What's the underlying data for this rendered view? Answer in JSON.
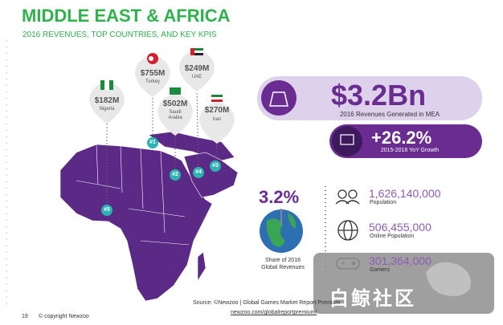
{
  "header": {
    "title": "MIDDLE EAST & AFRICA",
    "subtitle": "2016 REVENUES, TOP COUNTRIES, AND KEY KPIS"
  },
  "pins": [
    {
      "value": "$755M",
      "country": "Turkey",
      "rank": "#1"
    },
    {
      "value": "$502M",
      "country": "Saudi Arabia",
      "rank": "#2"
    },
    {
      "value": "$270M",
      "country": "Iran",
      "rank": "#3"
    },
    {
      "value": "$249M",
      "country": "UAE",
      "rank": "#4"
    },
    {
      "value": "$182M",
      "country": "Nigeria",
      "rank": "#5"
    }
  ],
  "kpis": {
    "revenue": {
      "value": "$3.2Bn",
      "label": "2016 Revenues Generated in MEA"
    },
    "growth": {
      "value": "+26.2%",
      "label": "2015-2016 YoY Growth"
    },
    "share": {
      "value": "3.2%",
      "label": "Share of 2016 Global Revenues"
    }
  },
  "stats": [
    {
      "value": "1,626,140,000",
      "label": "Population"
    },
    {
      "value": "506,455,000",
      "label": "Online Population"
    },
    {
      "value": "301,364,000",
      "label": "Gamers"
    }
  ],
  "source": {
    "line1": "Source: ©Newzoo | Global Games Market Report Premium",
    "line2": "newzoo.com/globalreportpremium/"
  },
  "footer": {
    "page": "19",
    "copyright": "© copyright Newzoo"
  },
  "watermark": "白鲸社区"
}
